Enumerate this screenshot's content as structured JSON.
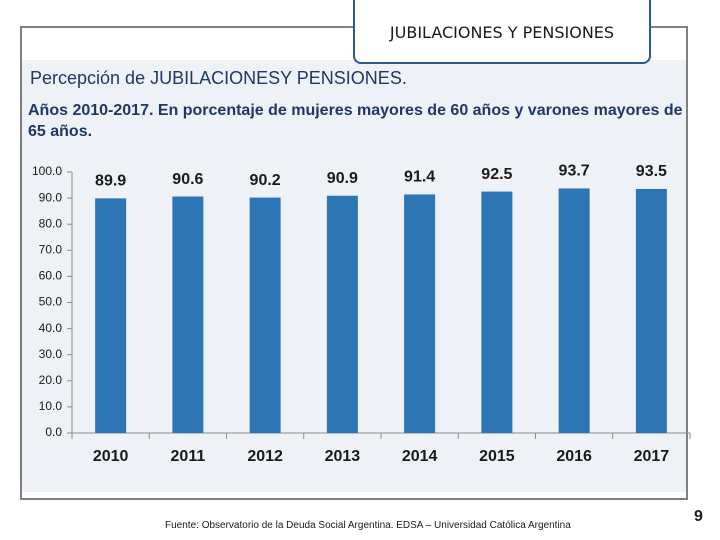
{
  "slide": {
    "header": "JUBILACIONES Y PENSIONES",
    "source": "Fuente: Observatorio de la Deuda Social Argentina. EDSA – Universidad Católica Argentina",
    "page": "9"
  },
  "chart_data": {
    "type": "bar",
    "title": "Percepción de JUBILACIONESY PENSIONES.",
    "subtitle": "Años 2010-2017. En porcentaje de mujeres mayores de 60 años y varones mayores de 65 años.",
    "categories": [
      "2010",
      "2011",
      "2012",
      "2013",
      "2014",
      "2015",
      "2016",
      "2017"
    ],
    "values": [
      89.9,
      90.6,
      90.2,
      90.9,
      91.4,
      92.5,
      93.7,
      93.5
    ],
    "color": "#2e75b6",
    "ylim": [
      0,
      100
    ],
    "yticks": [
      {
        "value": 0,
        "label": "0.0"
      },
      {
        "value": 10,
        "label": "10.0"
      },
      {
        "value": 20,
        "label": "20.0"
      },
      {
        "value": 30,
        "label": "30.0"
      },
      {
        "value": 40,
        "label": "40.0"
      },
      {
        "value": 50,
        "label": "50.0"
      },
      {
        "value": 60,
        "label": "60.0"
      },
      {
        "value": 70,
        "label": "70.0"
      },
      {
        "value": 80,
        "label": "80.0"
      },
      {
        "value": 90,
        "label": "90.0"
      },
      {
        "value": 100,
        "label": "100.0"
      }
    ],
    "grid": false
  }
}
